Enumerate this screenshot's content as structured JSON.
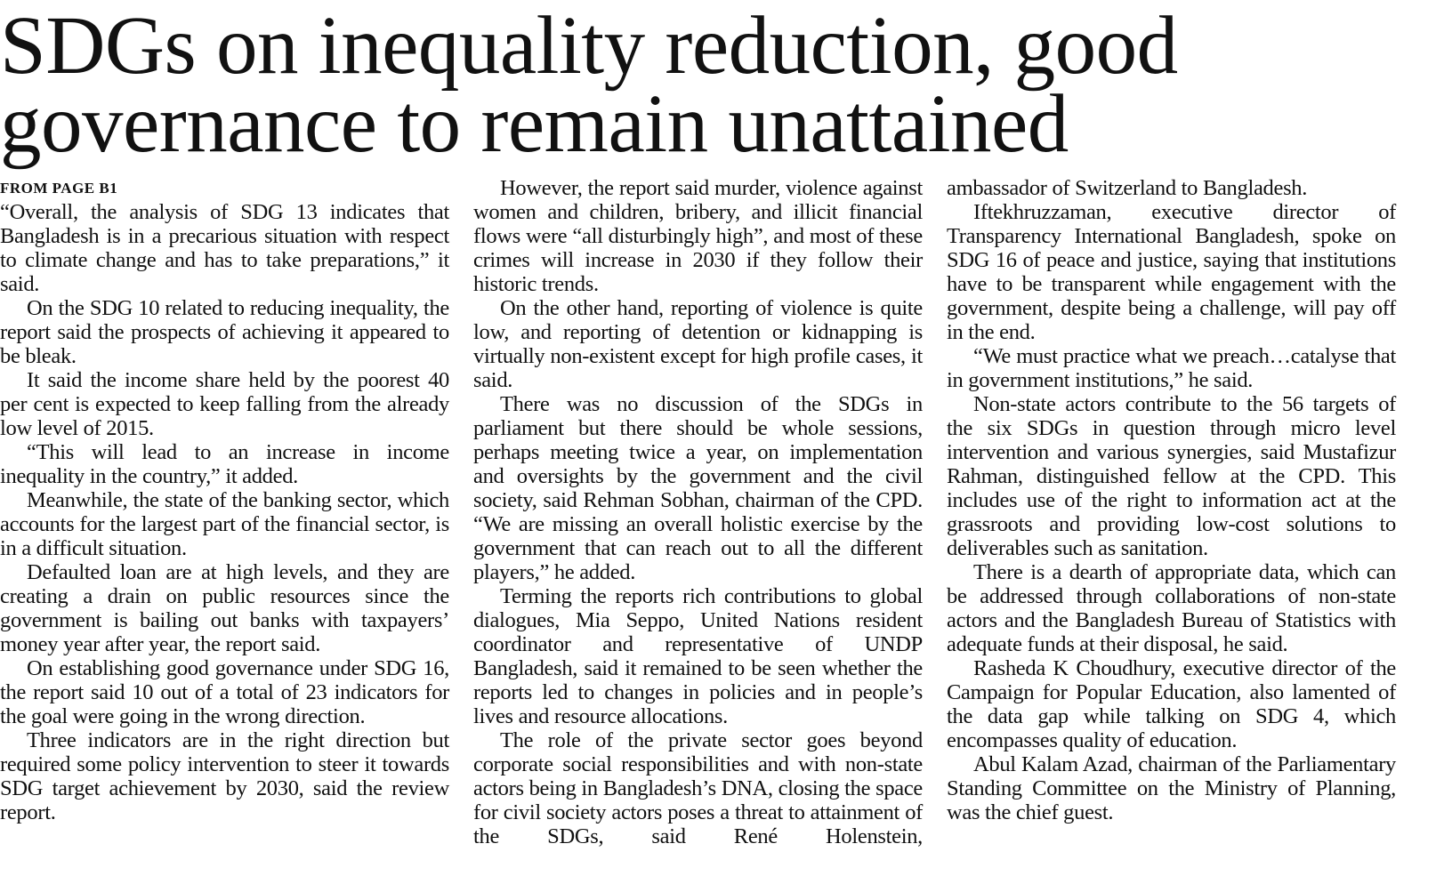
{
  "headline": [
    "SDGs on inequality reduction, good",
    "governance to remain unattained"
  ],
  "kicker": "FROM PAGE B1",
  "columns": [
    {
      "paragraphs": [
        "“Overall, the analysis of SDG 13 indicates that Bangladesh is in a precarious situation with respect to climate change and has to take preparations,” it said.",
        "On the SDG 10 related to reducing inequality, the report said the prospects of achieving it appeared to be bleak.",
        "It said the income share held by the poorest 40 per cent is expected to keep falling from the already low level of 2015.",
        "“This will lead to an increase in income inequality in the country,” it added.",
        "Meanwhile, the state of the banking sector, which accounts for the largest part of the financial sector, is in a difficult situation.",
        "Defaulted loan are at high levels, and they are creating a drain on public resources since the government is bailing out banks with taxpayers’ money year after year, the report said.",
        "On establishing good governance under SDG 16, the report said 10 out of a total of 23 indicators for the goal were going in the wrong direction.",
        "Three indicators are in the right direction but required some policy intervention to steer it towards SDG target achievement by 2030, said the review report."
      ]
    },
    {
      "paragraphs": [
        "However, the report said murder, violence against women and children, bribery, and illicit financial flows were “all disturbingly high”, and most of these crimes will increase in 2030 if they follow their historic trends.",
        "On the other hand, reporting of violence is quite low, and reporting of detention or kidnapping is virtually non-existent except for high profile cases, it said.",
        "There was no discussion of the SDGs in parliament but there should be whole sessions, perhaps meeting twice a year, on implementation and oversights by the government and the civil society, said Rehman Sobhan, chairman of the CPD. “We are missing an overall holistic exercise by the government that can reach out to all the different players,” he added.",
        "Terming the reports rich contributions to global dialogues, Mia Seppo, United Nations resident coordinator and representative of UNDP Bangladesh, said it remained to be seen whether the reports led to changes in policies and in people’s lives and resource allocations.",
        "The role of the private sector goes beyond corporate social responsibilities and with non-state actors being in Bangladesh’s DNA, closing the space for civil society actors poses a threat to attainment of the SDGs, said René Holenstein,"
      ]
    },
    {
      "paragraphs": [
        "ambassador of Switzerland to Bangladesh.",
        "Iftekhruzzaman, executive director of Transparency International Bangladesh, spoke on SDG 16 of peace and justice, saying that institutions have to be transparent while engagement with the government, despite being a challenge, will pay off in the end.",
        "“We must practice what we preach…catalyse that in government institutions,” he said.",
        "Non-state actors contribute to the 56 targets of the six SDGs in question through micro level intervention and various synergies, said Mustafizur Rahman, distinguished fellow at the CPD. This includes use of the right to information act at the grassroots and providing low-cost solutions to deliverables such as sanitation.",
        "There is a dearth of appropriate data, which can be addressed through collaborations of non-state actors and the Bangladesh Bureau of Statistics with adequate funds at their disposal, he said.",
        "Rasheda K Choudhury, executive director of the Campaign for Popular Education, also lamented of the data gap while talking on SDG 4, which encompasses quality of education.",
        "Abul Kalam Azad, chairman of the Parliamentary Standing Committee on the Ministry of Planning, was the chief guest."
      ]
    }
  ]
}
